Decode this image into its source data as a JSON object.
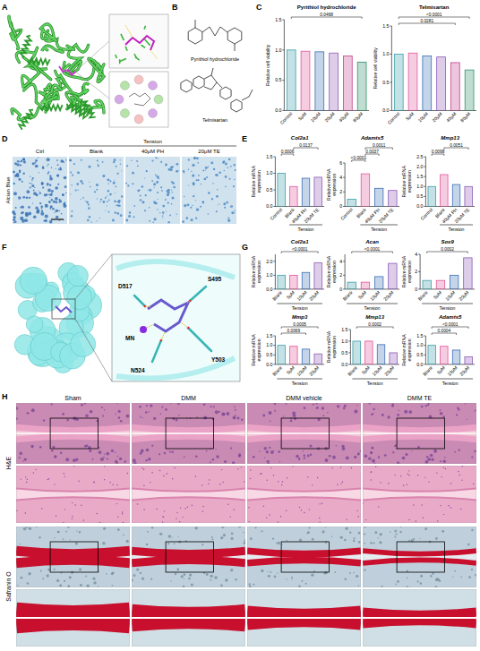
{
  "figure": {
    "panels": [
      "A",
      "B",
      "C",
      "D",
      "E",
      "F",
      "G",
      "H"
    ],
    "B": {
      "compounds": [
        "Pyrithiol hydrochloride",
        "Telmisartan"
      ]
    },
    "D": {
      "group": "Tension",
      "columns": [
        "Ctrl",
        "Blank",
        "40μM PH",
        "20μM TE"
      ],
      "stain": "Alcian Blue"
    },
    "F": {
      "residues": [
        "D517",
        "S495",
        "MN",
        "N524",
        "Y503"
      ]
    },
    "H": {
      "columns": [
        "Sham",
        "DMM",
        "DMM vehicle",
        "DMM TE"
      ],
      "rows": [
        "H&E",
        "Safranin O"
      ]
    }
  },
  "chart_data": [
    {
      "type": "bar",
      "title": "Pyrithiol hydrochloride",
      "ylabel": "Relative cell viability",
      "categories": [
        "Control",
        "5μM",
        "10μM",
        "20μM",
        "40μM",
        "80μM"
      ],
      "values": [
        1.0,
        0.98,
        0.97,
        0.95,
        0.9,
        0.8
      ],
      "colors": [
        "#3b9fa8",
        "#e0559a",
        "#3c6fb6",
        "#8e5bb5",
        "#c4408c",
        "#2f8f6a"
      ],
      "ylim": [
        0,
        1.5
      ],
      "yticks": [
        {
          "value": 0,
          "label": "0.0"
        },
        {
          "value": 0.5,
          "label": "0.5"
        },
        {
          "value": 1,
          "label": "1.0"
        },
        {
          "value": 1.5,
          "label": "1.5"
        }
      ],
      "annotations": [
        {
          "label": "0.0468",
          "pair": [
            "Control",
            "80μM"
          ]
        }
      ]
    },
    {
      "type": "bar",
      "title": "Telmisartan",
      "ylabel": "Relative cell viability",
      "categories": [
        "Control",
        "5μM",
        "10μM",
        "20μM",
        "40μM",
        "80μM"
      ],
      "values": [
        1.0,
        1.02,
        0.97,
        0.95,
        0.85,
        0.72
      ],
      "colors": [
        "#3b9fa8",
        "#e0559a",
        "#3c6fb6",
        "#8e5bb5",
        "#c4408c",
        "#2f8f6a"
      ],
      "ylim": [
        0,
        1.5
      ],
      "yticks": [
        {
          "value": 0,
          "label": "0.0"
        },
        {
          "value": 0.5,
          "label": "0.5"
        },
        {
          "value": 1,
          "label": "1.0"
        },
        {
          "value": 1.5,
          "label": "1.5"
        }
      ],
      "annotations": [
        {
          "label": "0.0281",
          "pair": [
            "Control",
            "40μM"
          ]
        },
        {
          "label": "<0.0001",
          "pair": [
            "Control",
            "80μM"
          ]
        }
      ]
    },
    {
      "type": "bar",
      "title": "Col2a1",
      "ylabel": "Relative mRNA expression",
      "categories": [
        "Control",
        "Blank",
        "40μM PH",
        "20μM TE"
      ],
      "values": [
        1.0,
        0.6,
        0.85,
        0.88
      ],
      "colors": [
        "#3b9fa8",
        "#e0559a",
        "#3c6fb6",
        "#8e5bb5"
      ],
      "ylim": [
        0,
        1.5
      ],
      "yticks": [
        {
          "value": 0,
          "label": "0.0"
        },
        {
          "value": 0.5,
          "label": "0.5"
        },
        {
          "value": 1,
          "label": "1.0"
        },
        {
          "value": 1.5,
          "label": "1.5"
        }
      ],
      "annotations": [
        {
          "label": "0.0006",
          "pair": [
            "Control",
            "Blank"
          ]
        },
        {
          "label": "0.0137",
          "pair": [
            "Blank",
            "20μM TE"
          ]
        }
      ],
      "group": {
        "label": "Tension",
        "categories": [
          "Blank",
          "40μM PH",
          "20μM TE"
        ]
      }
    },
    {
      "type": "bar",
      "title": "Adamts5",
      "ylabel": "Relative mRNA expression",
      "categories": [
        "Control",
        "Blank",
        "40μM PH",
        "20μM TE"
      ],
      "values": [
        1.0,
        4.5,
        2.5,
        2.2
      ],
      "colors": [
        "#3b9fa8",
        "#e0559a",
        "#3c6fb6",
        "#8e5bb5"
      ],
      "ylim": [
        0,
        6
      ],
      "yticks": [
        0,
        2,
        4,
        6
      ],
      "annotations": [
        {
          "label": "<0.0001",
          "pair": [
            "Control",
            "Blank"
          ]
        },
        {
          "label": "0.0037",
          "pair": [
            "Blank",
            "40μM PH"
          ]
        },
        {
          "label": "0.0011",
          "pair": [
            "Blank",
            "20μM TE"
          ]
        }
      ],
      "group": {
        "label": "Tension",
        "categories": [
          "Blank",
          "40μM PH",
          "20μM TE"
        ]
      }
    },
    {
      "type": "bar",
      "title": "Mmp13",
      "ylabel": "Relative mRNA expression",
      "categories": [
        "Control",
        "Blank",
        "40μM PH",
        "20μM TE"
      ],
      "values": [
        1.0,
        1.6,
        1.1,
        1.0
      ],
      "colors": [
        "#3b9fa8",
        "#e0559a",
        "#3c6fb6",
        "#8e5bb5"
      ],
      "ylim": [
        0,
        2.5
      ],
      "yticks": [
        {
          "value": 0,
          "label": "0.0"
        },
        {
          "value": 0.5,
          "label": "0.5"
        },
        {
          "value": 1,
          "label": "1.0"
        },
        {
          "value": 1.5,
          "label": "1.5"
        },
        {
          "value": 2,
          "label": "2.0"
        },
        {
          "value": 2.5,
          "label": "2.5"
        }
      ],
      "annotations": [
        {
          "label": "0.0098",
          "pair": [
            "Control",
            "Blank"
          ]
        },
        {
          "label": "0.0051",
          "pair": [
            "Blank",
            "20μM TE"
          ]
        }
      ],
      "group": {
        "label": "Tension",
        "categories": [
          "Blank",
          "40μM PH",
          "20μM TE"
        ]
      }
    },
    {
      "type": "bar",
      "title": "Col2a1",
      "ylabel": "Relative mRNA expression",
      "categories": [
        "Blank",
        "5μM",
        "10μM",
        "20μM"
      ],
      "values": [
        1.0,
        1.0,
        1.2,
        1.9
      ],
      "colors": [
        "#3b9fa8",
        "#e0559a",
        "#3c6fb6",
        "#8e5bb5"
      ],
      "ylim": [
        0,
        2.5
      ],
      "yticks": [
        {
          "value": 0,
          "label": "0.0"
        },
        {
          "value": 1,
          "label": "1.0"
        },
        {
          "value": 2,
          "label": "2.0"
        }
      ],
      "annotations": [
        {
          "label": "<0.0001",
          "pair": [
            "Blank",
            "20μM"
          ]
        }
      ],
      "group": {
        "label": "Tension",
        "categories": [
          "Blank",
          "5μM",
          "10μM",
          "20μM"
        ]
      }
    },
    {
      "type": "bar",
      "title": "Acan",
      "ylabel": "Relative mRNA expression",
      "categories": [
        "Blank",
        "5μM",
        "10μM",
        "20μM"
      ],
      "values": [
        1.0,
        1.0,
        1.8,
        3.7
      ],
      "colors": [
        "#3b9fa8",
        "#e0559a",
        "#3c6fb6",
        "#8e5bb5"
      ],
      "ylim": [
        0,
        5
      ],
      "yticks": [
        0,
        2,
        4
      ],
      "annotations": [
        {
          "label": "<0.0001",
          "pair": [
            "Blank",
            "20μM"
          ]
        }
      ],
      "group": {
        "label": "Tension",
        "categories": [
          "Blank",
          "5μM",
          "10μM",
          "20μM"
        ]
      }
    },
    {
      "type": "bar",
      "title": "Sox9",
      "ylabel": "Relative mRNA expression",
      "categories": [
        "Blank",
        "5μM",
        "10μM",
        "20μM"
      ],
      "values": [
        1.0,
        1.0,
        1.6,
        3.6
      ],
      "colors": [
        "#3b9fa8",
        "#e0559a",
        "#3c6fb6",
        "#8e5bb5"
      ],
      "ylim": [
        0,
        4
      ],
      "yticks": [
        0,
        2,
        4
      ],
      "annotations": [
        {
          "label": "0.0002",
          "pair": [
            "Blank",
            "20μM"
          ]
        }
      ],
      "group": {
        "label": "Tension",
        "categories": [
          "Blank",
          "5μM",
          "10μM",
          "20μM"
        ]
      }
    },
    {
      "type": "bar",
      "title": "Mmp3",
      "ylabel": "Relative mRNA expression",
      "categories": [
        "Blank",
        "5μM",
        "10μM",
        "20μM"
      ],
      "values": [
        1.0,
        0.95,
        0.8,
        0.55
      ],
      "colors": [
        "#3b9fa8",
        "#e0559a",
        "#3c6fb6",
        "#8e5bb5"
      ],
      "ylim": [
        0,
        1.5
      ],
      "yticks": [
        {
          "value": 0,
          "label": "0.0"
        },
        {
          "value": 0.5,
          "label": "0.5"
        },
        {
          "value": 1,
          "label": "1.0"
        },
        {
          "value": 1.5,
          "label": "1.5"
        }
      ],
      "annotations": [
        {
          "label": "0.0069",
          "pair": [
            "Blank",
            "10μM"
          ]
        },
        {
          "label": "0.0005",
          "pair": [
            "Blank",
            "20μM"
          ]
        }
      ],
      "group": {
        "label": "Tension",
        "categories": [
          "Blank",
          "5μM",
          "10μM",
          "20μM"
        ]
      }
    },
    {
      "type": "bar",
      "title": "Mmp13",
      "ylabel": "Relative mRNA expression",
      "categories": [
        "Blank",
        "5μM",
        "10μM",
        "20μM"
      ],
      "values": [
        1.0,
        1.0,
        0.85,
        0.5
      ],
      "colors": [
        "#3b9fa8",
        "#e0559a",
        "#3c6fb6",
        "#8e5bb5"
      ],
      "ylim": [
        0,
        1.5
      ],
      "yticks": [
        {
          "value": 0,
          "label": "0.0"
        },
        {
          "value": 0.5,
          "label": "0.5"
        },
        {
          "value": 1,
          "label": "1.0"
        },
        {
          "value": 1.5,
          "label": "1.5"
        }
      ],
      "annotations": [
        {
          "label": "0.0002",
          "pair": [
            "Blank",
            "20μM"
          ]
        }
      ],
      "group": {
        "label": "Tension",
        "categories": [
          "Blank",
          "5μM",
          "10μM",
          "20μM"
        ]
      }
    },
    {
      "type": "bar",
      "title": "Adamts5",
      "ylabel": "Relative mRNA expression",
      "categories": [
        "Blank",
        "5μM",
        "10μM",
        "20μM"
      ],
      "values": [
        1.0,
        0.95,
        0.75,
        0.4
      ],
      "colors": [
        "#3b9fa8",
        "#e0559a",
        "#3c6fb6",
        "#8e5bb5"
      ],
      "ylim": [
        0,
        1.5
      ],
      "yticks": [
        {
          "value": 0,
          "label": "0.0"
        },
        {
          "value": 0.5,
          "label": "0.5"
        },
        {
          "value": 1,
          "label": "1.0"
        },
        {
          "value": 1.5,
          "label": "1.5"
        }
      ],
      "annotations": [
        {
          "label": "0.0004",
          "pair": [
            "Blank",
            "10μM"
          ]
        },
        {
          "label": "<0.0001",
          "pair": [
            "Blank",
            "20μM"
          ]
        }
      ],
      "group": {
        "label": "Tension",
        "categories": [
          "Blank",
          "5μM",
          "10μM",
          "20μM"
        ]
      }
    }
  ]
}
